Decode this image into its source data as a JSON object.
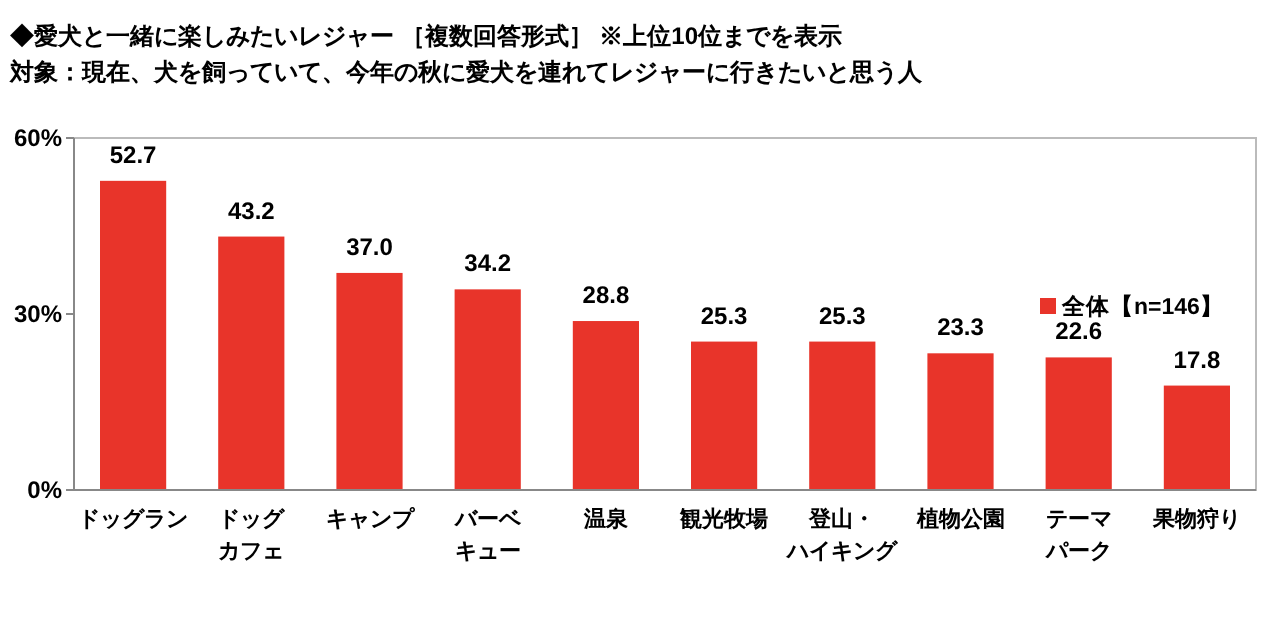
{
  "chart_data": {
    "type": "bar",
    "title": "◆愛犬と一緒に楽しみたいレジャー ［複数回答形式］ ※上位10位までを表示",
    "subtitle": "対象：現在、犬を飼っていて、今年の秋に愛犬を連れてレジャーに行きたいと思う人",
    "categories": [
      "ドッグラン",
      "ドッグカフェ",
      "キャンプ",
      "バーベキュー",
      "温泉",
      "観光牧場",
      "登山・ハイキング",
      "植物公園",
      "テーマパーク",
      "果物狩り"
    ],
    "series": [
      {
        "name": "全体【n=146】",
        "color": "#e8342a",
        "values": [
          52.7,
          43.2,
          37.0,
          34.2,
          28.8,
          25.3,
          25.3,
          23.3,
          22.6,
          17.8
        ],
        "value_labels": [
          "52.7",
          "43.2",
          "37.0",
          "34.2",
          "28.8",
          "25.3",
          "25.3",
          "23.3",
          "22.6",
          "17.8"
        ]
      }
    ],
    "ylim": [
      0,
      60
    ],
    "yticks": [
      {
        "value": 0,
        "label": "0%"
      },
      {
        "value": 30,
        "label": "30%"
      },
      {
        "value": 60,
        "label": "60%"
      }
    ],
    "legend": "right",
    "grid": false
  }
}
